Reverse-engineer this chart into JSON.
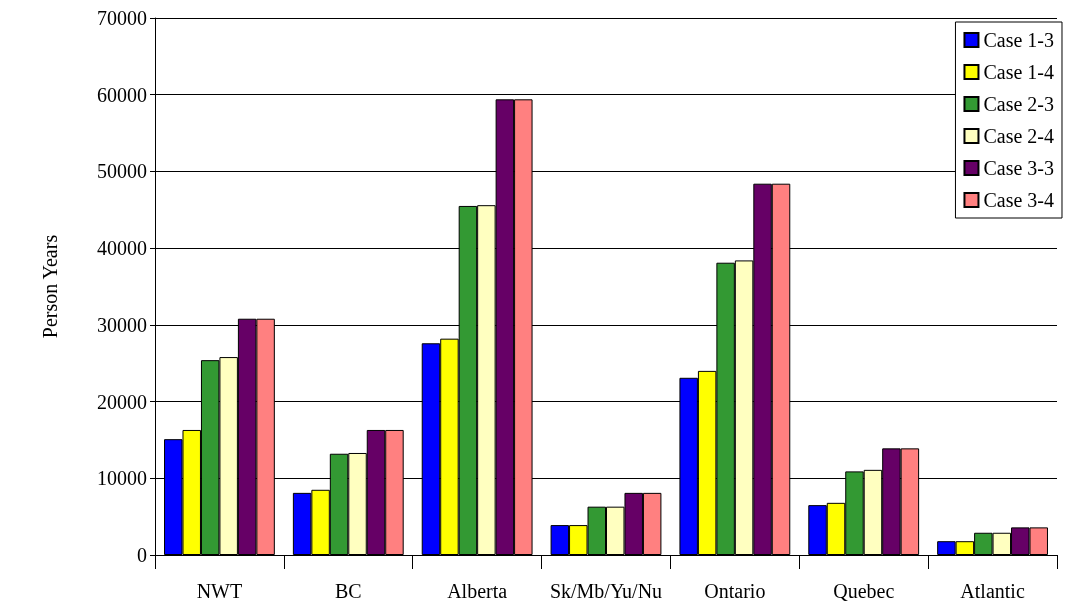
{
  "chart_data": {
    "type": "bar",
    "ylabel": "Person Years",
    "categories": [
      "NWT",
      "BC",
      "Alberta",
      "Sk/Mb/Yu/Nu",
      "Ontario",
      "Quebec",
      "Atlantic"
    ],
    "series": [
      {
        "name": "Case 1-3",
        "color": "#0000ff",
        "values": [
          15100,
          8100,
          27600,
          3900,
          23100,
          6500,
          1800
        ]
      },
      {
        "name": "Case 1-4",
        "color": "#ffff00",
        "values": [
          16300,
          8500,
          28200,
          3900,
          24000,
          6800,
          1800
        ]
      },
      {
        "name": "Case 2-3",
        "color": "#339933",
        "values": [
          25400,
          13200,
          45500,
          6300,
          38100,
          10900,
          2900
        ]
      },
      {
        "name": "Case 2-4",
        "color": "#ffffc0",
        "values": [
          25800,
          13300,
          45600,
          6300,
          38400,
          11100,
          2900
        ]
      },
      {
        "name": "Case 3-3",
        "color": "#660066",
        "values": [
          30800,
          16300,
          59400,
          8100,
          48400,
          13900,
          3600
        ]
      },
      {
        "name": "Case 3-4",
        "color": "#ff8080",
        "values": [
          30800,
          16300,
          59400,
          8100,
          48400,
          13900,
          3600
        ]
      }
    ],
    "ylim": [
      0,
      70000
    ],
    "yticks": [
      0,
      10000,
      20000,
      30000,
      40000,
      50000,
      60000,
      70000
    ],
    "grid": "y",
    "legend": "top right"
  }
}
